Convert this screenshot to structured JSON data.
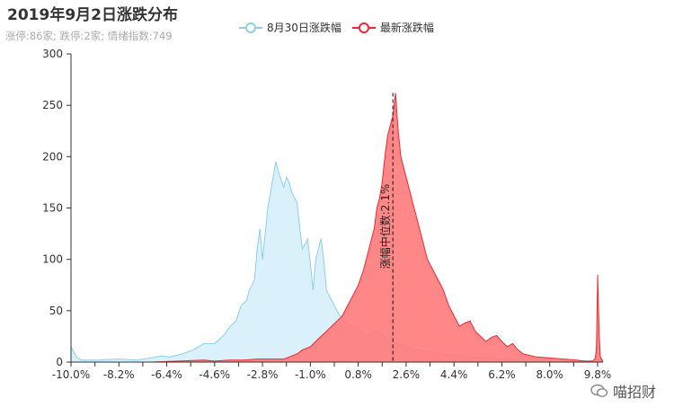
{
  "title": "2019年9月2日涨跌分布",
  "subtitle": "涨停:86家; 跌停:2家; 情绪指数:749",
  "watermark": "喵招财",
  "colors": {
    "prev": "#8ccfec",
    "prev_fill": "#daf0fa",
    "curr": "#ee2a33",
    "curr_fill": "#ff7a7a"
  },
  "chart_data": {
    "type": "area",
    "title": "2019年9月2日涨跌分布",
    "x_tick_labels": [
      "-10.0%",
      "-8.2%",
      "-6.4%",
      "-4.6%",
      "-2.8%",
      "-1.0%",
      "0.8%",
      "2.6%",
      "4.4%",
      "6.2%",
      "8.0%",
      "9.8%"
    ],
    "xlim": [
      -10.0,
      10.0
    ],
    "ylim": [
      0,
      300
    ],
    "yticks": [
      0,
      50,
      100,
      150,
      200,
      250,
      300
    ],
    "legend": "top-center",
    "median_label": "涨幅中位数:2.1%",
    "median_x": 2.1,
    "series": [
      {
        "name": "8月30日涨跌幅",
        "x": [
          -10.0,
          -9.8,
          -9.6,
          -9.0,
          -8.2,
          -7.5,
          -7.0,
          -6.6,
          -6.3,
          -5.8,
          -5.4,
          -5.0,
          -4.6,
          -4.3,
          -4.0,
          -3.8,
          -3.6,
          -3.4,
          -3.3,
          -3.2,
          -3.1,
          -3.0,
          -2.9,
          -2.8,
          -2.7,
          -2.6,
          -2.5,
          -2.4,
          -2.3,
          -2.2,
          -2.0,
          -1.9,
          -1.8,
          -1.7,
          -1.6,
          -1.5,
          -1.4,
          -1.3,
          -1.2,
          -1.1,
          -1.0,
          -0.9,
          -0.8,
          -0.6,
          -0.5,
          -0.4,
          -0.3,
          -0.2,
          -0.1,
          0.0,
          0.1,
          0.2,
          0.3,
          0.5,
          0.7,
          0.9,
          1.1,
          1.3,
          1.5,
          1.8,
          2.0,
          2.3,
          2.6,
          3.0,
          3.5,
          4.0,
          4.5,
          5.0,
          5.5,
          6.0,
          6.5,
          7.0,
          7.5,
          8.0,
          8.5,
          9.0,
          9.5,
          9.7,
          9.8,
          9.9,
          10.0
        ],
        "y": [
          15,
          5,
          2,
          2,
          3,
          2,
          4,
          6,
          5,
          8,
          12,
          18,
          18,
          25,
          35,
          40,
          55,
          60,
          70,
          75,
          80,
          110,
          130,
          100,
          125,
          150,
          165,
          180,
          195,
          185,
          170,
          180,
          175,
          165,
          160,
          155,
          130,
          110,
          115,
          120,
          95,
          70,
          100,
          120,
          100,
          70,
          65,
          60,
          55,
          50,
          45,
          45,
          40,
          35,
          35,
          30,
          25,
          28,
          30,
          25,
          20,
          18,
          15,
          12,
          10,
          8,
          6,
          5,
          4,
          3,
          3,
          2,
          2,
          1,
          1,
          1,
          1,
          1,
          30,
          5,
          2
        ]
      },
      {
        "name": "最新涨跌幅",
        "x": [
          -10.0,
          -9.0,
          -8.0,
          -7.0,
          -6.0,
          -5.0,
          -4.6,
          -4.0,
          -3.5,
          -3.0,
          -2.5,
          -2.0,
          -1.8,
          -1.5,
          -1.3,
          -1.0,
          -0.8,
          -0.6,
          -0.4,
          -0.2,
          0.0,
          0.2,
          0.4,
          0.6,
          0.8,
          1.0,
          1.2,
          1.4,
          1.5,
          1.6,
          1.7,
          1.8,
          1.9,
          2.0,
          2.1,
          2.2,
          2.3,
          2.4,
          2.5,
          2.6,
          2.7,
          2.8,
          2.9,
          3.0,
          3.2,
          3.4,
          3.6,
          3.8,
          4.0,
          4.2,
          4.4,
          4.6,
          4.8,
          5.0,
          5.2,
          5.4,
          5.6,
          5.8,
          6.0,
          6.2,
          6.4,
          6.6,
          6.8,
          7.0,
          7.5,
          8.0,
          8.5,
          9.0,
          9.3,
          9.5,
          9.6,
          9.7,
          9.75,
          9.8,
          9.85,
          9.9,
          10.0
        ],
        "y": [
          0,
          0,
          0,
          0,
          1,
          2,
          1,
          2,
          2,
          3,
          3,
          3,
          5,
          8,
          12,
          15,
          20,
          25,
          30,
          35,
          40,
          45,
          55,
          65,
          75,
          90,
          110,
          130,
          150,
          160,
          175,
          200,
          220,
          230,
          240,
          262,
          225,
          200,
          190,
          180,
          170,
          160,
          150,
          140,
          120,
          100,
          90,
          80,
          70,
          55,
          45,
          35,
          38,
          40,
          30,
          25,
          20,
          24,
          26,
          20,
          15,
          18,
          12,
          8,
          5,
          4,
          3,
          2,
          1,
          1,
          1,
          3,
          10,
          85,
          30,
          5,
          0
        ]
      }
    ]
  }
}
